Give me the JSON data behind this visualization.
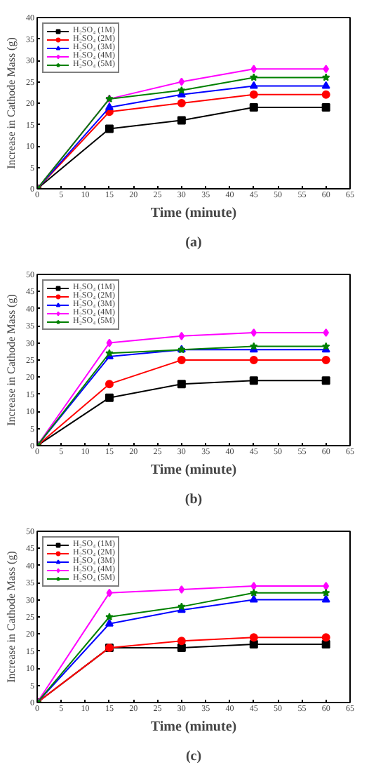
{
  "chart_data": [
    {
      "type": "line",
      "xlabel": "Time (minute)",
      "ylabel": "Increase in Cathode Mass (g)",
      "annotations": [
        "(a)"
      ],
      "x": [
        0,
        15,
        30,
        45,
        60
      ],
      "xlim": [
        0,
        65
      ],
      "xticks": [
        0,
        5,
        10,
        15,
        20,
        25,
        30,
        35,
        40,
        45,
        50,
        55,
        60,
        65
      ],
      "ylim": [
        0,
        40
      ],
      "yticks": [
        0,
        5,
        10,
        15,
        20,
        25,
        30,
        35,
        40
      ],
      "grid": false,
      "legend": "top left",
      "series": [
        {
          "name": "H₂SO₄ (1M)",
          "color": "#000000",
          "marker": "square",
          "values": [
            0,
            14,
            16,
            19,
            19
          ]
        },
        {
          "name": "H₂SO₄ (2M)",
          "color": "#ff0000",
          "marker": "circle",
          "values": [
            0,
            18,
            20,
            22,
            22
          ]
        },
        {
          "name": "H₂SO₄ (3M)",
          "color": "#0000ff",
          "marker": "triangle",
          "values": [
            0,
            19,
            22,
            24,
            24
          ]
        },
        {
          "name": "H₂SO₄ (4M)",
          "color": "#ff00ff",
          "marker": "diamond",
          "values": [
            0,
            21,
            25,
            28,
            28
          ]
        },
        {
          "name": "H₂SO₄ (5M)",
          "color": "#008000",
          "marker": "star",
          "values": [
            0,
            21,
            23,
            26,
            26
          ]
        }
      ]
    },
    {
      "type": "line",
      "xlabel": "Time (minute)",
      "ylabel": "Increase in Cathode Mass (g)",
      "annotations": [
        "(b)"
      ],
      "x": [
        0,
        15,
        30,
        45,
        60
      ],
      "xlim": [
        0,
        65
      ],
      "xticks": [
        0,
        5,
        10,
        15,
        20,
        25,
        30,
        35,
        40,
        45,
        50,
        55,
        60,
        65
      ],
      "ylim": [
        0,
        50
      ],
      "yticks": [
        0,
        5,
        10,
        15,
        20,
        25,
        30,
        35,
        40,
        45,
        50
      ],
      "grid": false,
      "legend": "top left",
      "series": [
        {
          "name": "H₂SO₄ (1M)",
          "color": "#000000",
          "marker": "square",
          "values": [
            0,
            14,
            18,
            19,
            19
          ]
        },
        {
          "name": "H₂SO₄ (2M)",
          "color": "#ff0000",
          "marker": "circle",
          "values": [
            0,
            18,
            25,
            25,
            25
          ]
        },
        {
          "name": "H₂SO₄ (3M)",
          "color": "#0000ff",
          "marker": "triangle",
          "values": [
            0,
            26,
            28,
            28,
            28
          ]
        },
        {
          "name": "H₂SO₄ (4M)",
          "color": "#ff00ff",
          "marker": "diamond",
          "values": [
            0,
            30,
            32,
            33,
            33
          ]
        },
        {
          "name": "H₂SO₄ (5M)",
          "color": "#008000",
          "marker": "star",
          "values": [
            0,
            27,
            28,
            29,
            29
          ]
        }
      ]
    },
    {
      "type": "line",
      "xlabel": "Time (minute)",
      "ylabel": "Increase in Cathode Mass (g)",
      "annotations": [
        "(c)"
      ],
      "x": [
        0,
        15,
        30,
        45,
        60
      ],
      "xlim": [
        0,
        65
      ],
      "xticks": [
        0,
        5,
        10,
        15,
        20,
        25,
        30,
        35,
        40,
        45,
        50,
        55,
        60,
        65
      ],
      "ylim": [
        0,
        50
      ],
      "yticks": [
        0,
        5,
        10,
        15,
        20,
        25,
        30,
        35,
        40,
        45,
        50
      ],
      "grid": false,
      "legend": "top left",
      "series": [
        {
          "name": "H₂SO₄ (1M)",
          "color": "#000000",
          "marker": "square",
          "values": [
            0,
            16,
            16,
            17,
            17
          ]
        },
        {
          "name": "H₂SO₄ (2M)",
          "color": "#ff0000",
          "marker": "circle",
          "values": [
            0,
            16,
            18,
            19,
            19
          ]
        },
        {
          "name": "H₂SO₄ (3M)",
          "color": "#0000ff",
          "marker": "triangle",
          "values": [
            0,
            23,
            27,
            30,
            30
          ]
        },
        {
          "name": "H₂SO₄ (4M)",
          "color": "#ff00ff",
          "marker": "diamond",
          "values": [
            0,
            32,
            33,
            34,
            34
          ]
        },
        {
          "name": "H₂SO₄ (5M)",
          "color": "#008000",
          "marker": "star",
          "values": [
            0,
            25,
            28,
            32,
            32
          ]
        }
      ]
    }
  ]
}
